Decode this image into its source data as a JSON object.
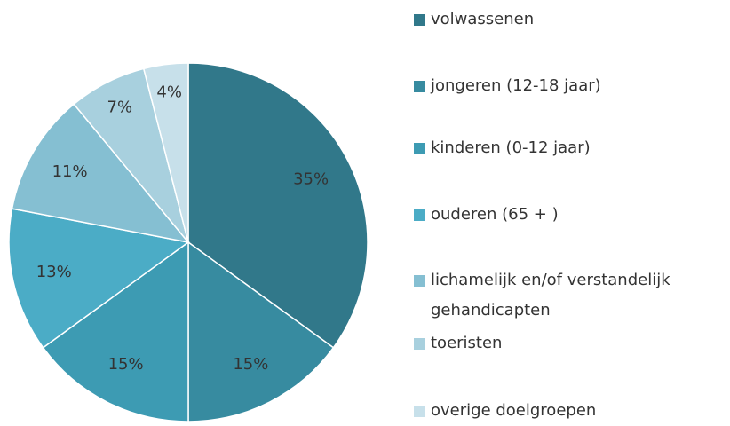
{
  "chart_data": {
    "type": "pie",
    "categories": [
      "volwassenen",
      "jongeren (12-18 jaar)",
      "kinderen (0-12 jaar)",
      "ouderen (65 + )",
      "lichamelijk en/of verstandelijk gehandicapten",
      "toeristen",
      "overige doelgroepen"
    ],
    "values": [
      35,
      15,
      15,
      13,
      11,
      7,
      4
    ],
    "value_labels": [
      "35%",
      "15%",
      "15%",
      "13%",
      "11%",
      "7%",
      "4%"
    ],
    "colors": [
      "#31788a",
      "#378ba0",
      "#3d9bb3",
      "#4bacc6",
      "#85bfd2",
      "#a8d0de",
      "#c7e0ea"
    ],
    "legend": "right"
  }
}
